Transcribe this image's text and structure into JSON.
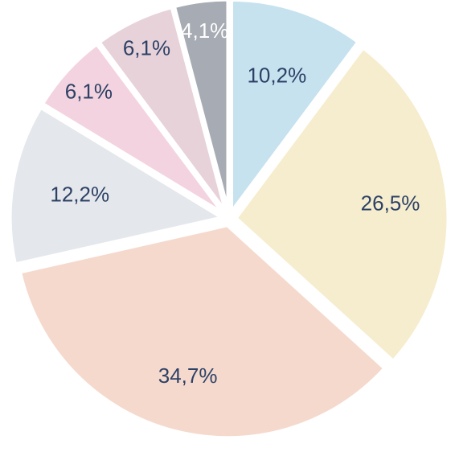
{
  "chart_data": {
    "type": "pie",
    "start_angle_deg": 0,
    "direction": "clockwise",
    "slices": [
      {
        "value": 10.2,
        "label": "10,2%",
        "color": "#c6e2ee",
        "label_color": "#2d4166"
      },
      {
        "value": 26.5,
        "label": "26,5%",
        "color": "#f5edcd",
        "label_color": "#2d4166"
      },
      {
        "value": 34.7,
        "label": "34,7%",
        "color": "#f5d9cd",
        "label_color": "#2d4166"
      },
      {
        "value": 12.2,
        "label": "12,2%",
        "color": "#e4e7eb",
        "label_color": "#2d4166"
      },
      {
        "value": 6.1,
        "label": "6,1%",
        "color": "#f3d3df",
        "label_color": "#2d4166"
      },
      {
        "value": 6.1,
        "label": "6,1%",
        "color": "#e7d2da",
        "label_color": "#2d4166"
      },
      {
        "value": 4.1,
        "label": "4,1%",
        "color": "#a7abb3",
        "label_color": "#ffffff"
      }
    ]
  }
}
